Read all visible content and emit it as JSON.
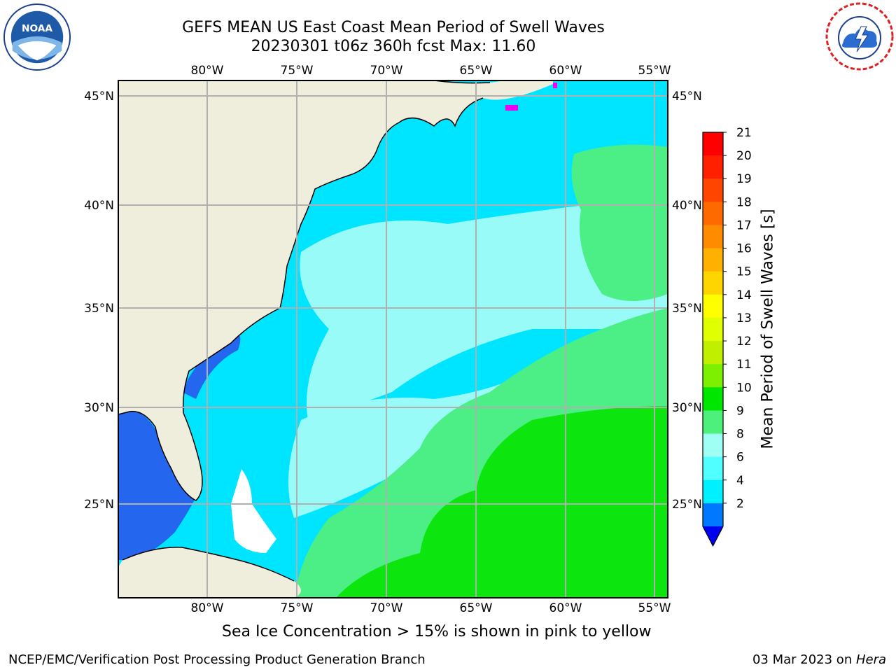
{
  "title": {
    "line1": "GEFS MEAN US East Coast Mean Period of Swell Waves",
    "line2": "20230301 t06z 360h fcst   Max: 11.60"
  },
  "map": {
    "lon_ticks": [
      "80°W",
      "75°W",
      "70°W",
      "65°W",
      "60°W",
      "55°W"
    ],
    "lat_ticks": [
      "45°N",
      "40°N",
      "35°N",
      "30°N",
      "25°N"
    ]
  },
  "colorbar": {
    "title": "Mean Period of Swell Waves [s]",
    "ticks": [
      "21",
      "20",
      "19",
      "18",
      "17",
      "16",
      "15",
      "14",
      "13",
      "12",
      "11",
      "10",
      "9",
      "8",
      "6",
      "4",
      "2"
    ],
    "colors": [
      "#ff0000",
      "#ff2000",
      "#ff4500",
      "#ff6a00",
      "#ff8c00",
      "#ffb000",
      "#ffd500",
      "#ffff00",
      "#e0ff00",
      "#c0f000",
      "#7cf000",
      "#00e600",
      "#4cf07a",
      "#a0fff4",
      "#50ffff",
      "#00f0ff",
      "#0078ff"
    ],
    "extend_color": "#0000f0"
  },
  "colors": {
    "land": "#efeedd",
    "swell_2_4": "#2466ee",
    "swell_4_6": "#00e5ff",
    "swell_6_8": "#3ff0ff",
    "swell_8_9": "#98fbf8",
    "swell_9_10": "#4cee86",
    "swell_10_11": "#0ce60e",
    "sea_ice": "#f000f0"
  },
  "ice_note": "Sea Ice Concentration > 15% is shown in pink to yellow",
  "footer": {
    "left": "NCEP/EMC/Verification Post Processing Product Generation Branch",
    "right_date": "03 Mar 2023 on ",
    "right_host": "Hera"
  }
}
